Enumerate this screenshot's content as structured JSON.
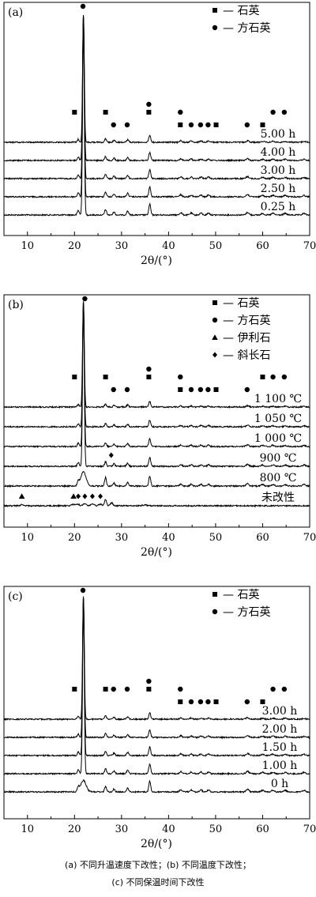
{
  "figure": {
    "caption_line1": "(a) 不同升温速度下改性；(b) 不同温度下改性；",
    "caption_line2": "(c) 不同保温时间下改性"
  },
  "chart_data": [
    {
      "type": "line",
      "panel_label": "(a)",
      "xlabel": "2θ/(°)",
      "xlim": [
        5,
        70
      ],
      "xticks": [
        10,
        20,
        30,
        40,
        50,
        60,
        70
      ],
      "legend": [
        {
          "marker": "square",
          "label": "— 石英"
        },
        {
          "marker": "circle",
          "label": "— 方石英"
        }
      ],
      "series": [
        {
          "name": "0.25 h",
          "cristobalite_peak": 1.0,
          "quartz_peak": 0.35
        },
        {
          "name": "2.50 h",
          "cristobalite_peak": 1.0,
          "quartz_peak": 0.35
        },
        {
          "name": "3.00 h",
          "cristobalite_peak": 1.0,
          "quartz_peak": 0.35
        },
        {
          "name": "4.00 h",
          "cristobalite_peak": 1.0,
          "quartz_peak": 0.35
        },
        {
          "name": "5.00 h",
          "cristobalite_peak": 1.0,
          "quartz_peak": 0.35
        }
      ],
      "peak_markers": [
        {
          "type": "square",
          "x": 20.0,
          "row": 1
        },
        {
          "type": "circle",
          "x": 21.8,
          "row": 0
        },
        {
          "type": "square",
          "x": 26.6,
          "row": 1
        },
        {
          "type": "circle",
          "x": 28.3,
          "row": 2
        },
        {
          "type": "circle",
          "x": 31.2,
          "row": 2
        },
        {
          "type": "circle",
          "x": 35.8,
          "row": 0
        },
        {
          "type": "square",
          "x": 35.8,
          "row": 1
        },
        {
          "type": "circle",
          "x": 42.5,
          "row": 1
        },
        {
          "type": "square",
          "x": 42.5,
          "row": 2
        },
        {
          "type": "circle",
          "x": 44.8,
          "row": 2
        },
        {
          "type": "circle",
          "x": 46.8,
          "row": 2
        },
        {
          "type": "circle",
          "x": 48.4,
          "row": 2
        },
        {
          "type": "square",
          "x": 50.1,
          "row": 2
        },
        {
          "type": "circle",
          "x": 56.7,
          "row": 2
        },
        {
          "type": "square",
          "x": 60.0,
          "row": 2
        },
        {
          "type": "circle",
          "x": 62.2,
          "row": 1
        },
        {
          "type": "circle",
          "x": 64.6,
          "row": 1
        }
      ]
    },
    {
      "type": "line",
      "panel_label": "(b)",
      "xlabel": "2θ/(°)",
      "xlim": [
        5,
        70
      ],
      "xticks": [
        10,
        20,
        30,
        40,
        50,
        60,
        70
      ],
      "legend": [
        {
          "marker": "square",
          "label": "— 石英"
        },
        {
          "marker": "circle",
          "label": "— 方石英"
        },
        {
          "marker": "triangle",
          "label": "— 伊利石"
        },
        {
          "marker": "diamond",
          "label": "— 斜长石"
        }
      ],
      "series": [
        {
          "name": "未改性",
          "cristobalite_peak": 0.0,
          "quartz_peak": 0.25
        },
        {
          "name": "800 ℃",
          "cristobalite_peak": 0.45,
          "quartz_peak": 0.6
        },
        {
          "name": "900 ℃",
          "cristobalite_peak": 1.0,
          "quartz_peak": 0.35
        },
        {
          "name": "1 000 ℃",
          "cristobalite_peak": 1.0,
          "quartz_peak": 0.35
        },
        {
          "name": "1 050 ℃",
          "cristobalite_peak": 1.0,
          "quartz_peak": 0.35
        },
        {
          "name": "1 100 ℃",
          "cristobalite_peak": 1.0,
          "quartz_peak": 0.35
        }
      ],
      "peak_markers": [
        {
          "type": "square",
          "x": 20.0,
          "row": 1
        },
        {
          "type": "circle",
          "x": 22.2,
          "row": 0
        },
        {
          "type": "square",
          "x": 26.6,
          "row": 1
        },
        {
          "type": "circle",
          "x": 28.3,
          "row": 2
        },
        {
          "type": "circle",
          "x": 31.2,
          "row": 2
        },
        {
          "type": "circle",
          "x": 35.8,
          "row": 0
        },
        {
          "type": "square",
          "x": 35.8,
          "row": 1
        },
        {
          "type": "circle",
          "x": 42.5,
          "row": 1
        },
        {
          "type": "square",
          "x": 42.5,
          "row": 2
        },
        {
          "type": "circle",
          "x": 44.8,
          "row": 2
        },
        {
          "type": "circle",
          "x": 46.8,
          "row": 2
        },
        {
          "type": "circle",
          "x": 48.4,
          "row": 2
        },
        {
          "type": "square",
          "x": 50.1,
          "row": 2
        },
        {
          "type": "circle",
          "x": 56.7,
          "row": 2
        },
        {
          "type": "square",
          "x": 60.0,
          "row": 1
        },
        {
          "type": "circle",
          "x": 62.2,
          "row": 1
        },
        {
          "type": "circle",
          "x": 64.6,
          "row": 1
        }
      ],
      "extra_markers": [
        {
          "type": "diamond",
          "x": 27.8,
          "series": "900 ℃"
        },
        {
          "type": "triangle",
          "x": 8.8,
          "series": "未改性"
        },
        {
          "type": "triangle",
          "x": 19.8,
          "series": "未改性"
        },
        {
          "type": "diamond",
          "x": 20.8,
          "series": "未改性"
        },
        {
          "type": "diamond",
          "x": 22.2,
          "series": "未改性"
        },
        {
          "type": "diamond",
          "x": 23.8,
          "series": "未改性"
        },
        {
          "type": "diamond",
          "x": 25.5,
          "series": "未改性"
        }
      ]
    },
    {
      "type": "line",
      "panel_label": "(c)",
      "xlabel": "2θ/(°)",
      "xlim": [
        5,
        70
      ],
      "xticks": [
        10,
        20,
        30,
        40,
        50,
        60,
        70
      ],
      "legend": [
        {
          "marker": "square",
          "label": "— 石英"
        },
        {
          "marker": "circle",
          "label": "— 方石英"
        }
      ],
      "series": [
        {
          "name": "0 h",
          "cristobalite_peak": 0.35,
          "quartz_peak": 0.35
        },
        {
          "name": "1.00 h",
          "cristobalite_peak": 1.0,
          "quartz_peak": 0.35
        },
        {
          "name": "1.50 h",
          "cristobalite_peak": 1.0,
          "quartz_peak": 0.35
        },
        {
          "name": "2.00 h",
          "cristobalite_peak": 1.0,
          "quartz_peak": 0.35
        },
        {
          "name": "3.00 h",
          "cristobalite_peak": 1.0,
          "quartz_peak": 0.35
        }
      ],
      "peak_markers": [
        {
          "type": "square",
          "x": 20.0,
          "row": 1
        },
        {
          "type": "circle",
          "x": 21.8,
          "row": 0
        },
        {
          "type": "square",
          "x": 26.6,
          "row": 1
        },
        {
          "type": "circle",
          "x": 28.3,
          "row": 1
        },
        {
          "type": "circle",
          "x": 31.2,
          "row": 1
        },
        {
          "type": "circle",
          "x": 35.8,
          "row": 0
        },
        {
          "type": "square",
          "x": 35.8,
          "row": 1
        },
        {
          "type": "circle",
          "x": 42.5,
          "row": 1
        },
        {
          "type": "square",
          "x": 42.5,
          "row": 2
        },
        {
          "type": "circle",
          "x": 44.8,
          "row": 2
        },
        {
          "type": "circle",
          "x": 46.8,
          "row": 2
        },
        {
          "type": "circle",
          "x": 48.4,
          "row": 2
        },
        {
          "type": "square",
          "x": 50.1,
          "row": 2
        },
        {
          "type": "circle",
          "x": 56.7,
          "row": 2
        },
        {
          "type": "square",
          "x": 60.0,
          "row": 2
        },
        {
          "type": "circle",
          "x": 62.2,
          "row": 1
        },
        {
          "type": "circle",
          "x": 64.6,
          "row": 1
        }
      ]
    }
  ]
}
